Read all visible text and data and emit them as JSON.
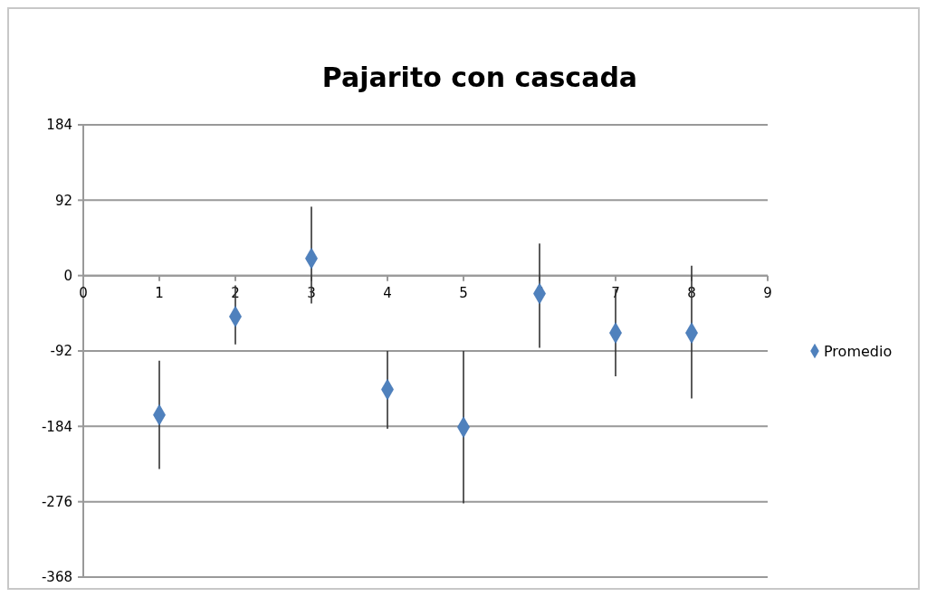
{
  "chart_data": {
    "type": "scatter",
    "title": "Pajarito con cascada",
    "x": [
      1,
      2,
      3,
      4,
      5,
      6,
      7,
      8
    ],
    "series": [
      {
        "name": "Promedio",
        "color": "#4f81bd",
        "values": [
          -170,
          -50,
          21,
          -139,
          -185,
          -22,
          -70,
          -70
        ],
        "errors": [
          [
            -236,
            -104
          ],
          [
            -84,
            -12
          ],
          [
            -34,
            84
          ],
          [
            -187,
            -92
          ],
          [
            -278,
            -92
          ],
          [
            -88,
            39
          ],
          [
            -123,
            -16
          ],
          [
            -150,
            12
          ]
        ]
      }
    ],
    "xlim": [
      0,
      9
    ],
    "xticks": [
      0,
      1,
      2,
      3,
      4,
      5,
      6,
      7,
      8,
      9
    ],
    "ylim": [
      -368,
      184
    ],
    "yticks": [
      -368,
      -276,
      -184,
      -92,
      0,
      92,
      184
    ],
    "grid": "y",
    "legend": "right",
    "marker": "diamond"
  }
}
